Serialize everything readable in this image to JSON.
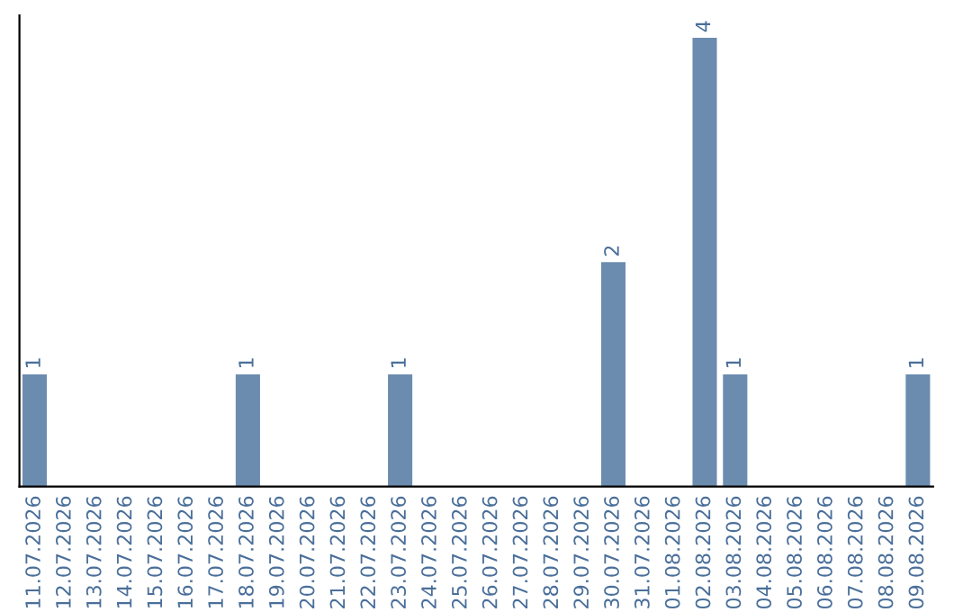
{
  "chart_data": {
    "type": "bar",
    "categories": [
      "11.07.2026",
      "12.07.2026",
      "13.07.2026",
      "14.07.2026",
      "15.07.2026",
      "16.07.2026",
      "17.07.2026",
      "18.07.2026",
      "19.07.2026",
      "20.07.2026",
      "21.07.2026",
      "22.07.2026",
      "23.07.2026",
      "24.07.2026",
      "25.07.2026",
      "26.07.2026",
      "27.07.2026",
      "28.07.2026",
      "29.07.2026",
      "30.07.2026",
      "31.07.2026",
      "01.08.2026",
      "02.08.2026",
      "03.08.2026",
      "04.08.2026",
      "05.08.2026",
      "06.08.2026",
      "07.08.2026",
      "08.08.2026",
      "09.08.2026"
    ],
    "values": [
      1,
      0,
      0,
      0,
      0,
      0,
      0,
      1,
      0,
      0,
      0,
      0,
      1,
      0,
      0,
      0,
      0,
      0,
      0,
      2,
      0,
      0,
      4,
      1,
      0,
      0,
      0,
      0,
      0,
      1
    ],
    "color": "#6b8caf",
    "value_labels": [
      "1",
      null,
      null,
      null,
      null,
      null,
      null,
      "1",
      null,
      null,
      null,
      null,
      "1",
      null,
      null,
      null,
      null,
      null,
      null,
      "2",
      null,
      null,
      "4",
      "1",
      null,
      null,
      null,
      null,
      null,
      "1"
    ],
    "tick_labels": "x",
    "grid": false,
    "legend": false
  }
}
